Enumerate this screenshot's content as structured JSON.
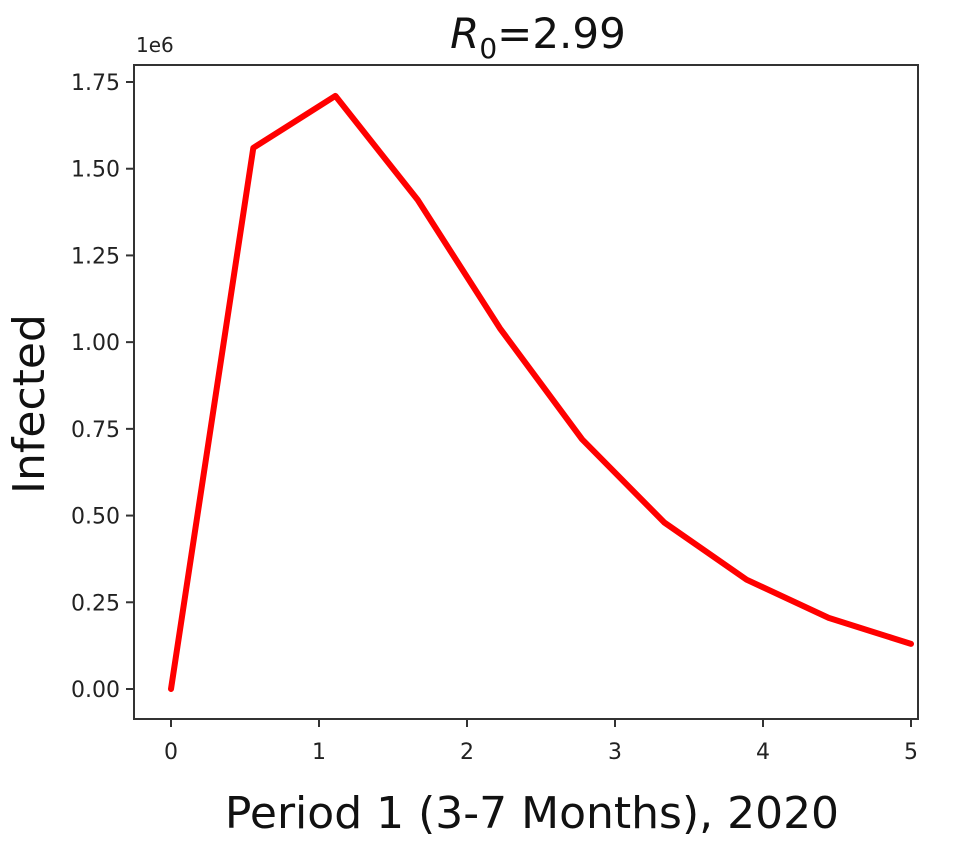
{
  "chart_data": {
    "type": "line",
    "title": {
      "var": "R",
      "sub": "0",
      "rest": "=2.99"
    },
    "xlabel": "Period 1 (3-7 Months), 2020",
    "ylabel": "Infected",
    "y_offset_label": "1e6",
    "xlim": [
      0,
      5
    ],
    "ylim": [
      -0.09,
      1.8
    ],
    "x_ticks": [
      0,
      1,
      2,
      3,
      4,
      5
    ],
    "x_tick_labels": [
      "0",
      "1",
      "2",
      "3",
      "4",
      "5"
    ],
    "y_ticks": [
      0,
      0.25,
      0.5,
      0.75,
      1.0,
      1.25,
      1.5,
      1.75
    ],
    "y_tick_labels": [
      "0.00",
      "0.25",
      "0.50",
      "0.75",
      "1.00",
      "1.25",
      "1.50",
      "1.75"
    ],
    "grid": false,
    "series": [
      {
        "color": "#ff0000",
        "x": [
          0,
          0.556,
          1.111,
          1.667,
          2.222,
          2.778,
          3.333,
          3.889,
          4.444,
          5.0
        ],
        "y": [
          0.0,
          1.56,
          1.71,
          1.41,
          1.04,
          0.72,
          0.48,
          0.315,
          0.205,
          0.13
        ]
      }
    ]
  }
}
